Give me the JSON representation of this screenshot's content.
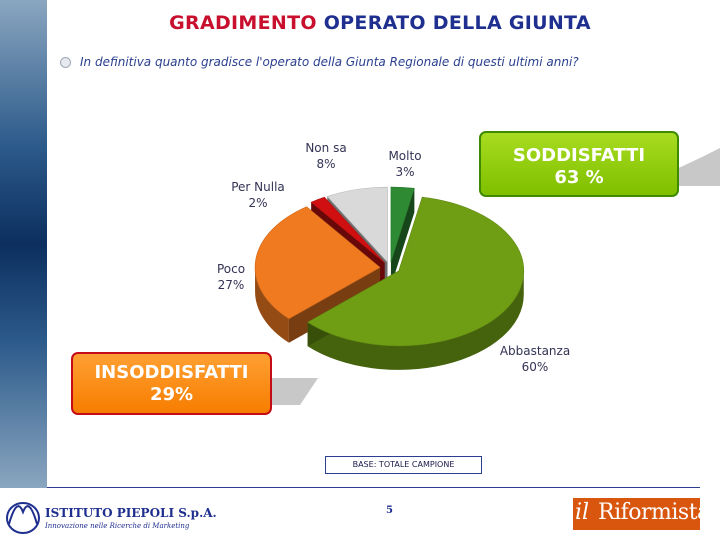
{
  "header": {
    "title_part1": "GRADIMENTO",
    "title_part2": "OPERATO DELLA GIUNTA"
  },
  "question": "In definitiva quanto gradisce l'operato della Giunta Regionale di questi ultimi anni?",
  "callouts": {
    "satisfied_label": "SODDISFATTI",
    "satisfied_value": "63 %",
    "unsatisfied_label": "INSODDISFATTI",
    "unsatisfied_value": "29%"
  },
  "base_note": "BASE: TOTALE CAMPIONE",
  "page_number": "5",
  "logos": {
    "left_name": "ISTITUTO PIEPOLI S.p.A.",
    "left_tagline": "Innovazione nelle Ricerche di Marketing",
    "right_prefix": "il",
    "right_name": "Riformista"
  },
  "colors": {
    "title_red": "#c8102e",
    "title_blue": "#1f2f8f",
    "satisfied_green": "#8cc800",
    "unsatisfied_orange": "#f98a10"
  },
  "chart_data": {
    "type": "pie",
    "title": "",
    "exploded": true,
    "three_d": true,
    "slices": [
      {
        "label": "Molto",
        "value": 3,
        "display": "3%",
        "color": "#2e8b34"
      },
      {
        "label": "Abbastanza",
        "value": 60,
        "display": "60%",
        "color": "#6f9e14"
      },
      {
        "label": "Poco",
        "value": 27,
        "display": "27%",
        "color": "#f07a20"
      },
      {
        "label": "Per Nulla",
        "value": 2,
        "display": "2%",
        "color": "#d01010"
      },
      {
        "label": "Non sa",
        "value": 8,
        "display": "8%",
        "color": "#d9d9d9"
      }
    ]
  }
}
